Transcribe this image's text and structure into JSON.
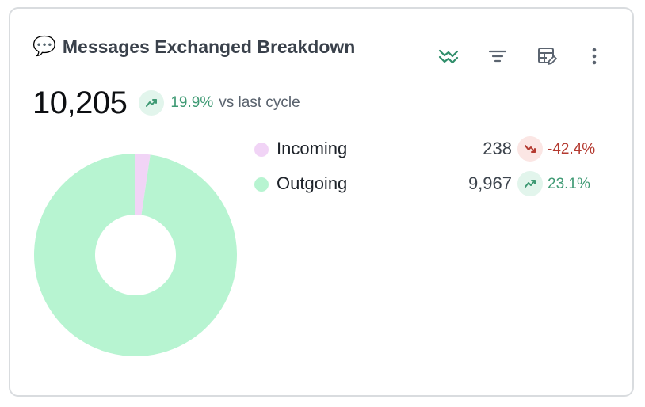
{
  "card": {
    "title_emoji": "💬",
    "title": "Messages Exchanged Breakdown",
    "toolbar": [
      {
        "name": "chart-type-icon",
        "color": "#2f8e6a"
      },
      {
        "name": "filter-icon",
        "color": "#5b6470"
      },
      {
        "name": "table-edit-icon",
        "color": "#5b6470"
      },
      {
        "name": "more-vertical-icon",
        "color": "#5b6470"
      }
    ]
  },
  "summary": {
    "total": "10,205",
    "trend_direction": "up",
    "trend_pct": "19.9%",
    "trend_suffix": "vs last cycle"
  },
  "legend": [
    {
      "label": "Incoming",
      "value": "238",
      "trend_direction": "down",
      "pct": "-42.4%",
      "color": "#f1d4f6"
    },
    {
      "label": "Outgoing",
      "value": "9,967",
      "trend_direction": "up",
      "pct": "23.1%",
      "color": "#b7f4d1"
    }
  ],
  "colors": {
    "up": "#3f9a74",
    "up_bg": "#e2f5ec",
    "down": "#b43a30",
    "down_bg": "#fbe6e4"
  },
  "chart_data": {
    "type": "pie",
    "variant": "donut",
    "title": "Messages Exchanged Breakdown",
    "categories": [
      "Incoming",
      "Outgoing"
    ],
    "values": [
      238,
      9967
    ],
    "colors": [
      "#f1d4f6",
      "#b7f4d1"
    ],
    "total": 10205
  }
}
